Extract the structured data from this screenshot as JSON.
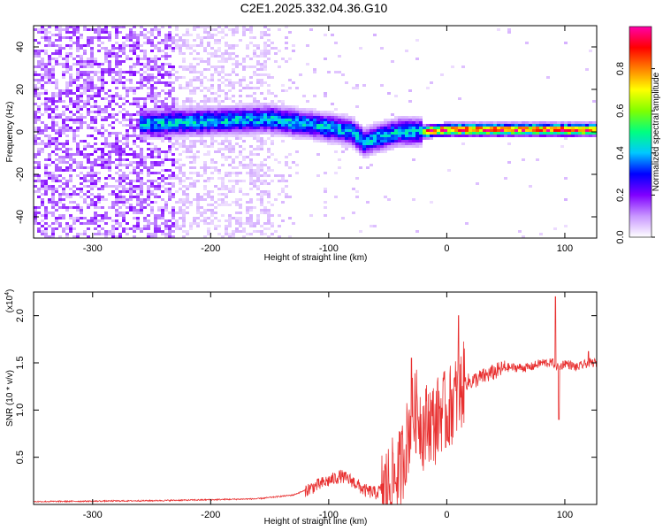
{
  "title": "C2E1.2025.332.04.36.G10",
  "chart_data": [
    {
      "type": "heatmap",
      "title": "C2E1.2025.332.04.36.G10",
      "xlabel": "Height of straight line (km)",
      "ylabel": "Frequency (Hz)",
      "xlim": [
        -350,
        127
      ],
      "ylim": [
        -50,
        50
      ],
      "xticks": [
        -300,
        -200,
        -100,
        0,
        100
      ],
      "yticks": [
        -40,
        -20,
        0,
        20,
        40
      ],
      "xtick_labels": [
        "-300",
        "-200",
        "-100",
        "0",
        "100"
      ],
      "ytick_labels": [
        "-40",
        "-20",
        "0",
        "20",
        "40"
      ],
      "ridge": {
        "description_points_x": [
          -250,
          -200,
          -150,
          -110,
          -80,
          -70,
          -60,
          -40,
          -20,
          0,
          30,
          60,
          90,
          127
        ],
        "description_points_y": [
          4,
          5,
          6,
          3,
          0,
          -5,
          -3,
          0,
          0,
          1,
          1,
          1,
          1,
          1
        ]
      },
      "colorbar": {
        "label": "Normalized spectral amplitude",
        "ticks": [
          0.0,
          0.2,
          0.4,
          0.6,
          0.8
        ],
        "tick_labels": [
          "0.0",
          "0.2",
          "0.4",
          "0.6",
          "0.8"
        ],
        "colors": [
          "#ffffff",
          "#c896ff",
          "#8000ff",
          "#0000ff",
          "#00c8ff",
          "#00ff80",
          "#80ff00",
          "#ffff00",
          "#ff8000",
          "#ff0000",
          "#ff00aa"
        ]
      }
    },
    {
      "type": "line",
      "xlabel": "Height of straight line (km)",
      "ylabel": "SNR (10 * v/v)",
      "yscale_label": "(x10",
      "yscale_exponent": "4",
      "yscale_close": ")",
      "xlim": [
        -350,
        127
      ],
      "ylim": [
        0,
        2.25
      ],
      "xticks": [
        -300,
        -200,
        -100,
        0,
        100
      ],
      "yticks": [
        0.5,
        1.0,
        1.5,
        2.0
      ],
      "xtick_labels": [
        "-300",
        "-200",
        "-100",
        "0",
        "100"
      ],
      "ytick_labels": [
        "0.5",
        "1.0",
        "1.5",
        "2.0"
      ],
      "color": "#e83030",
      "series": [
        {
          "name": "SNR",
          "x": [
            -350,
            -300,
            -250,
            -200,
            -160,
            -130,
            -110,
            -100,
            -90,
            -80,
            -70,
            -60,
            -50,
            -40,
            -35,
            -30,
            -25,
            -20,
            -15,
            -10,
            -5,
            0,
            5,
            10,
            15,
            20,
            30,
            40,
            50,
            60,
            70,
            80,
            90,
            95,
            100,
            110,
            120,
            127
          ],
          "y": [
            0.03,
            0.035,
            0.04,
            0.05,
            0.06,
            0.1,
            0.2,
            0.25,
            0.3,
            0.25,
            0.15,
            0.12,
            0.2,
            0.35,
            0.6,
            0.9,
            1.0,
            0.8,
            0.9,
            0.85,
            1.0,
            0.95,
            1.1,
            1.15,
            1.3,
            1.3,
            1.35,
            1.4,
            1.45,
            1.45,
            1.45,
            1.5,
            1.5,
            1.45,
            1.5,
            1.45,
            1.5,
            1.5
          ],
          "spikes": [
            {
              "x": -30,
              "y": 1.55
            },
            {
              "x": 10,
              "y": 2.0
            },
            {
              "x": 92,
              "y": 2.2
            },
            {
              "x": 95,
              "y": 0.9
            },
            {
              "x": 120,
              "y": 1.62
            }
          ]
        }
      ]
    }
  ]
}
